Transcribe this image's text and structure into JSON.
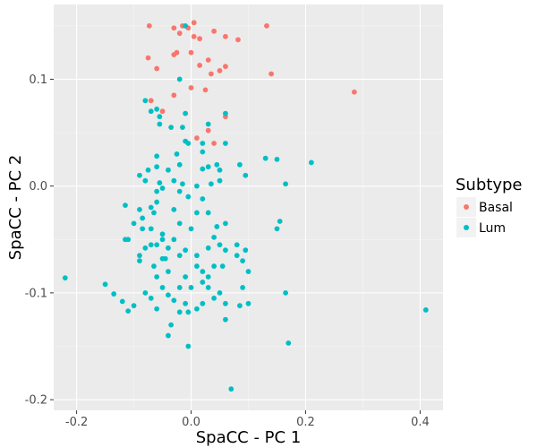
{
  "chart_data": {
    "type": "scatter",
    "title": "",
    "xlabel": "SpaCC - PC 1",
    "ylabel": "SpaCC - PC 2",
    "xlim": [
      -0.24,
      0.44
    ],
    "ylim": [
      -0.21,
      0.17
    ],
    "xticks": [
      -0.2,
      0.0,
      0.2,
      0.4
    ],
    "xtick_labels": [
      "-0.2",
      "0.0",
      "0.2",
      "0.4"
    ],
    "yticks": [
      -0.2,
      -0.1,
      0.0,
      0.1
    ],
    "ytick_labels": [
      "-0.2",
      "-0.1",
      "0.0",
      "0.1"
    ],
    "grid": true,
    "legend": {
      "title": "Subtype",
      "position": "right",
      "entries": [
        {
          "name": "Basal",
          "color": "#F8766D"
        },
        {
          "name": "Lum",
          "color": "#00BFC4"
        }
      ]
    },
    "series": [
      {
        "name": "Basal",
        "color": "#F8766D",
        "points": [
          [
            -0.073,
            0.15
          ],
          [
            -0.03,
            0.148
          ],
          [
            -0.015,
            0.15
          ],
          [
            -0.005,
            0.148
          ],
          [
            0.005,
            0.153
          ],
          [
            0.005,
            0.14
          ],
          [
            -0.02,
            0.143
          ],
          [
            0.015,
            0.138
          ],
          [
            0.04,
            0.145
          ],
          [
            0.06,
            0.14
          ],
          [
            0.082,
            0.137
          ],
          [
            0.132,
            0.15
          ],
          [
            -0.075,
            0.12
          ],
          [
            -0.06,
            0.11
          ],
          [
            -0.03,
            0.123
          ],
          [
            -0.025,
            0.125
          ],
          [
            0.0,
            0.125
          ],
          [
            0.015,
            0.113
          ],
          [
            0.03,
            0.118
          ],
          [
            0.05,
            0.108
          ],
          [
            0.06,
            0.112
          ],
          [
            0.035,
            0.105
          ],
          [
            0.14,
            0.105
          ],
          [
            0.285,
            0.088
          ],
          [
            0.025,
            0.09
          ],
          [
            0.0,
            0.092
          ],
          [
            -0.03,
            0.085
          ],
          [
            -0.07,
            0.08
          ],
          [
            -0.05,
            0.07
          ],
          [
            0.06,
            0.065
          ],
          [
            0.01,
            0.045
          ],
          [
            0.04,
            0.04
          ],
          [
            0.03,
            0.052
          ]
        ]
      },
      {
        "name": "Lum",
        "color": "#00BFC4",
        "points": [
          [
            -0.01,
            0.15
          ],
          [
            -0.02,
            0.1
          ],
          [
            -0.08,
            0.08
          ],
          [
            -0.07,
            0.07
          ],
          [
            -0.06,
            0.072
          ],
          [
            -0.055,
            0.065
          ],
          [
            -0.01,
            0.068
          ],
          [
            -0.015,
            0.055
          ],
          [
            0.06,
            0.068
          ],
          [
            0.03,
            0.058
          ],
          [
            -0.055,
            0.058
          ],
          [
            -0.035,
            0.055
          ],
          [
            -0.005,
            0.04
          ],
          [
            -0.01,
            0.042
          ],
          [
            0.02,
            0.04
          ],
          [
            0.06,
            0.04
          ],
          [
            0.045,
            0.02
          ],
          [
            0.02,
            0.032
          ],
          [
            -0.025,
            0.03
          ],
          [
            -0.06,
            0.028
          ],
          [
            -0.075,
            0.015
          ],
          [
            -0.06,
            0.018
          ],
          [
            -0.04,
            0.015
          ],
          [
            -0.02,
            0.02
          ],
          [
            0.02,
            0.016
          ],
          [
            0.03,
            0.018
          ],
          [
            0.05,
            0.015
          ],
          [
            0.085,
            0.02
          ],
          [
            0.095,
            0.01
          ],
          [
            0.13,
            0.026
          ],
          [
            0.15,
            0.025
          ],
          [
            0.165,
            0.002
          ],
          [
            0.21,
            0.022
          ],
          [
            -0.09,
            0.01
          ],
          [
            -0.08,
            0.005
          ],
          [
            -0.055,
            0.003
          ],
          [
            -0.03,
            0.005
          ],
          [
            -0.015,
            0.002
          ],
          [
            0.01,
            0.0
          ],
          [
            0.035,
            0.002
          ],
          [
            0.05,
            0.005
          ],
          [
            -0.06,
            -0.005
          ],
          [
            -0.05,
            -0.002
          ],
          [
            -0.02,
            -0.005
          ],
          [
            -0.005,
            -0.01
          ],
          [
            0.02,
            -0.012
          ],
          [
            -0.06,
            -0.015
          ],
          [
            -0.07,
            -0.02
          ],
          [
            -0.115,
            -0.018
          ],
          [
            -0.09,
            -0.022
          ],
          [
            -0.085,
            -0.03
          ],
          [
            -0.065,
            -0.025
          ],
          [
            -0.03,
            -0.022
          ],
          [
            0.01,
            -0.025
          ],
          [
            0.03,
            -0.025
          ],
          [
            0.06,
            -0.035
          ],
          [
            -0.1,
            -0.035
          ],
          [
            -0.085,
            -0.04
          ],
          [
            -0.07,
            -0.04
          ],
          [
            -0.05,
            -0.045
          ],
          [
            -0.02,
            -0.035
          ],
          [
            0.0,
            -0.04
          ],
          [
            0.045,
            -0.038
          ],
          [
            0.15,
            -0.04
          ],
          [
            0.155,
            -0.033
          ],
          [
            -0.07,
            -0.055
          ],
          [
            -0.05,
            -0.05
          ],
          [
            -0.03,
            -0.05
          ],
          [
            0.04,
            -0.048
          ],
          [
            0.05,
            -0.055
          ],
          [
            0.06,
            -0.06
          ],
          [
            -0.115,
            -0.05
          ],
          [
            -0.08,
            -0.058
          ],
          [
            -0.06,
            -0.055
          ],
          [
            -0.04,
            -0.058
          ],
          [
            -0.01,
            -0.06
          ],
          [
            0.03,
            -0.058
          ],
          [
            0.08,
            -0.055
          ],
          [
            0.095,
            -0.06
          ],
          [
            -0.11,
            -0.05
          ],
          [
            -0.05,
            -0.068
          ],
          [
            -0.02,
            -0.065
          ],
          [
            0.01,
            -0.065
          ],
          [
            0.08,
            -0.065
          ],
          [
            0.09,
            -0.07
          ],
          [
            -0.065,
            -0.075
          ],
          [
            -0.045,
            -0.068
          ],
          [
            -0.09,
            -0.065
          ],
          [
            0.1,
            -0.08
          ],
          [
            0.04,
            -0.075
          ],
          [
            0.02,
            -0.08
          ],
          [
            -0.01,
            -0.085
          ],
          [
            -0.06,
            -0.085
          ],
          [
            -0.04,
            -0.08
          ],
          [
            0.01,
            -0.075
          ],
          [
            -0.09,
            -0.07
          ],
          [
            0.055,
            -0.075
          ],
          [
            0.03,
            -0.085
          ],
          [
            0.02,
            -0.09
          ],
          [
            -0.22,
            -0.086
          ],
          [
            -0.15,
            -0.092
          ],
          [
            -0.135,
            -0.101
          ],
          [
            -0.08,
            -0.1
          ],
          [
            -0.05,
            -0.095
          ],
          [
            -0.02,
            -0.095
          ],
          [
            0.0,
            -0.095
          ],
          [
            0.03,
            -0.095
          ],
          [
            0.05,
            -0.1
          ],
          [
            -0.07,
            -0.105
          ],
          [
            -0.04,
            -0.102
          ],
          [
            -0.03,
            -0.107
          ],
          [
            0.04,
            -0.105
          ],
          [
            0.06,
            -0.11
          ],
          [
            -0.12,
            -0.108
          ],
          [
            -0.01,
            -0.11
          ],
          [
            0.09,
            -0.095
          ],
          [
            0.165,
            -0.1
          ],
          [
            0.01,
            -0.115
          ],
          [
            0.02,
            -0.11
          ],
          [
            -0.1,
            -0.112
          ],
          [
            -0.06,
            -0.115
          ],
          [
            -0.11,
            -0.117
          ],
          [
            -0.02,
            -0.118
          ],
          [
            -0.005,
            -0.118
          ],
          [
            0.1,
            -0.11
          ],
          [
            0.085,
            -0.112
          ],
          [
            -0.035,
            -0.13
          ],
          [
            -0.04,
            -0.14
          ],
          [
            -0.005,
            -0.15
          ],
          [
            0.17,
            -0.147
          ],
          [
            0.41,
            -0.116
          ],
          [
            0.06,
            -0.125
          ],
          [
            0.07,
            -0.19
          ]
        ]
      }
    ]
  }
}
